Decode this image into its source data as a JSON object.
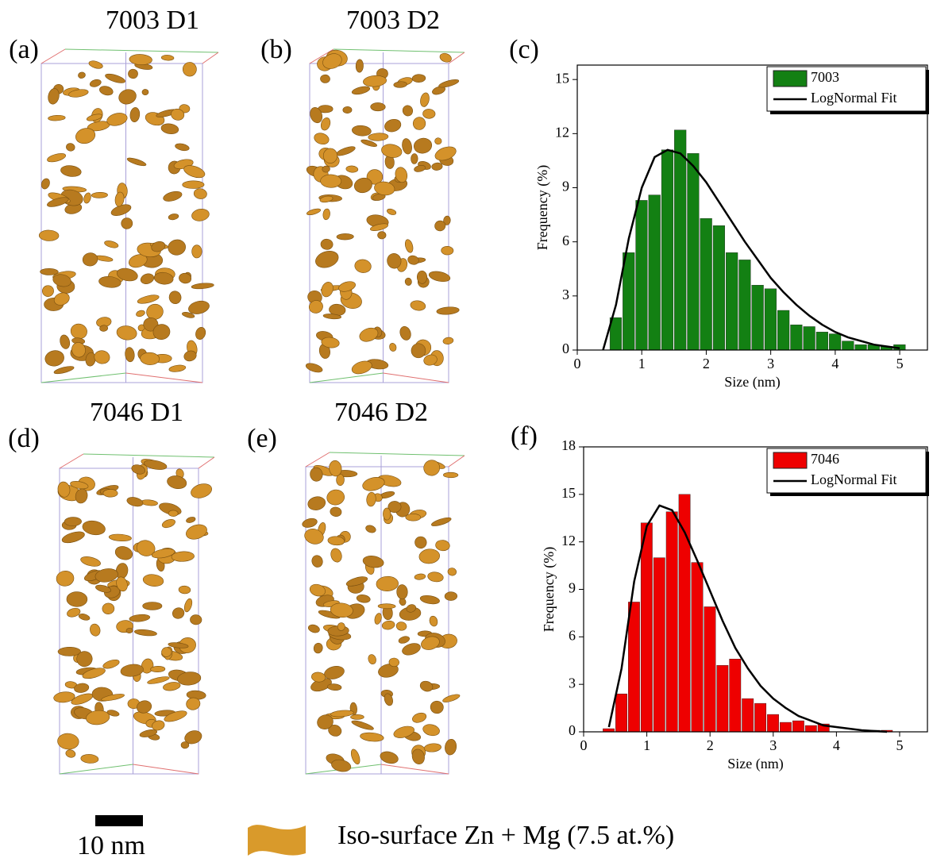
{
  "panels": [
    {
      "label": "(a)",
      "title": "7003 D1"
    },
    {
      "label": "(b)",
      "title": "7003 D2"
    },
    {
      "label": "(d)",
      "title": "7046 D1"
    },
    {
      "label": "(e)",
      "title": "7046 D2"
    }
  ],
  "scale_bar": "10 nm",
  "legend": "Iso-surface Zn + Mg (7.5 at.%)",
  "chart_data": [
    {
      "type": "histogram",
      "panel_label": "(c)",
      "xlabel": "Size (nm)",
      "ylabel": "Frequency (%)",
      "xlim": [
        0,
        5.43
      ],
      "ylim": [
        0,
        15.8
      ],
      "xticks": [
        0,
        1,
        2,
        3,
        4,
        5
      ],
      "yticks": [
        0,
        3,
        6,
        9,
        12,
        15
      ],
      "legend": "upper right",
      "bins": [
        0.5,
        0.7,
        0.9,
        1.1,
        1.3,
        1.5,
        1.7,
        1.9,
        2.1,
        2.3,
        2.5,
        2.7,
        2.9,
        3.1,
        3.3,
        3.5,
        3.7,
        3.9,
        4.1,
        4.3,
        4.5,
        4.7,
        4.9,
        5.1
      ],
      "series": [
        {
          "name": "7003",
          "color": "#138013",
          "values": [
            1.8,
            5.4,
            8.3,
            8.6,
            11.1,
            12.2,
            10.9,
            7.3,
            6.9,
            5.4,
            5.0,
            3.6,
            3.4,
            2.2,
            1.4,
            1.3,
            1.0,
            0.9,
            0.5,
            0.3,
            0.3,
            0.2,
            0.3
          ]
        },
        {
          "name": "LogNormal Fit",
          "type": "line",
          "color": "#000000",
          "x": [
            0.4,
            0.6,
            0.8,
            1.0,
            1.2,
            1.4,
            1.6,
            1.8,
            2.0,
            2.2,
            2.4,
            2.6,
            2.8,
            3.0,
            3.2,
            3.4,
            3.6,
            3.8,
            4.0,
            4.2,
            4.4,
            4.6,
            4.8,
            5.0
          ],
          "values": [
            0,
            2.5,
            6.2,
            9.0,
            10.7,
            11.1,
            10.9,
            10.2,
            9.3,
            8.2,
            7.1,
            6.0,
            5.0,
            4.0,
            3.2,
            2.5,
            1.9,
            1.4,
            1.0,
            0.7,
            0.5,
            0.3,
            0.2,
            0.1
          ]
        }
      ]
    },
    {
      "type": "histogram",
      "panel_label": "(f)",
      "xlabel": "Size (nm)",
      "ylabel": "Frequency (%)",
      "xlim": [
        0,
        5.44
      ],
      "ylim": [
        0,
        18
      ],
      "xticks": [
        0,
        1,
        2,
        3,
        4,
        5
      ],
      "yticks": [
        0,
        3,
        6,
        9,
        12,
        15,
        18
      ],
      "legend": "upper right",
      "bins": [
        0.3,
        0.5,
        0.7,
        0.9,
        1.1,
        1.3,
        1.5,
        1.7,
        1.9,
        2.1,
        2.3,
        2.5,
        2.7,
        2.9,
        3.1,
        3.3,
        3.5,
        3.7,
        3.9,
        4.1,
        4.3,
        4.5,
        4.7,
        4.9
      ],
      "series": [
        {
          "name": "7046",
          "color": "#ee0000",
          "values": [
            0.2,
            2.4,
            8.2,
            13.2,
            11.0,
            13.9,
            15.0,
            10.7,
            7.9,
            4.2,
            4.6,
            2.1,
            1.8,
            1.1,
            0.6,
            0.7,
            0.4,
            0.5,
            0,
            0,
            0,
            0.1,
            0.1
          ]
        },
        {
          "name": "LogNormal Fit",
          "type": "line",
          "color": "#000000",
          "x": [
            0.4,
            0.6,
            0.8,
            1.0,
            1.2,
            1.4,
            1.6,
            1.8,
            2.0,
            2.2,
            2.4,
            2.6,
            2.8,
            3.0,
            3.2,
            3.4,
            3.6,
            3.8,
            4.0,
            4.2,
            4.4,
            4.6,
            4.8
          ],
          "values": [
            0.3,
            4.0,
            9.5,
            13.0,
            14.3,
            14.0,
            12.6,
            10.8,
            8.9,
            7.0,
            5.3,
            4.0,
            2.9,
            2.1,
            1.5,
            1.0,
            0.7,
            0.4,
            0.3,
            0.2,
            0.1,
            0.05,
            0
          ]
        }
      ]
    }
  ]
}
